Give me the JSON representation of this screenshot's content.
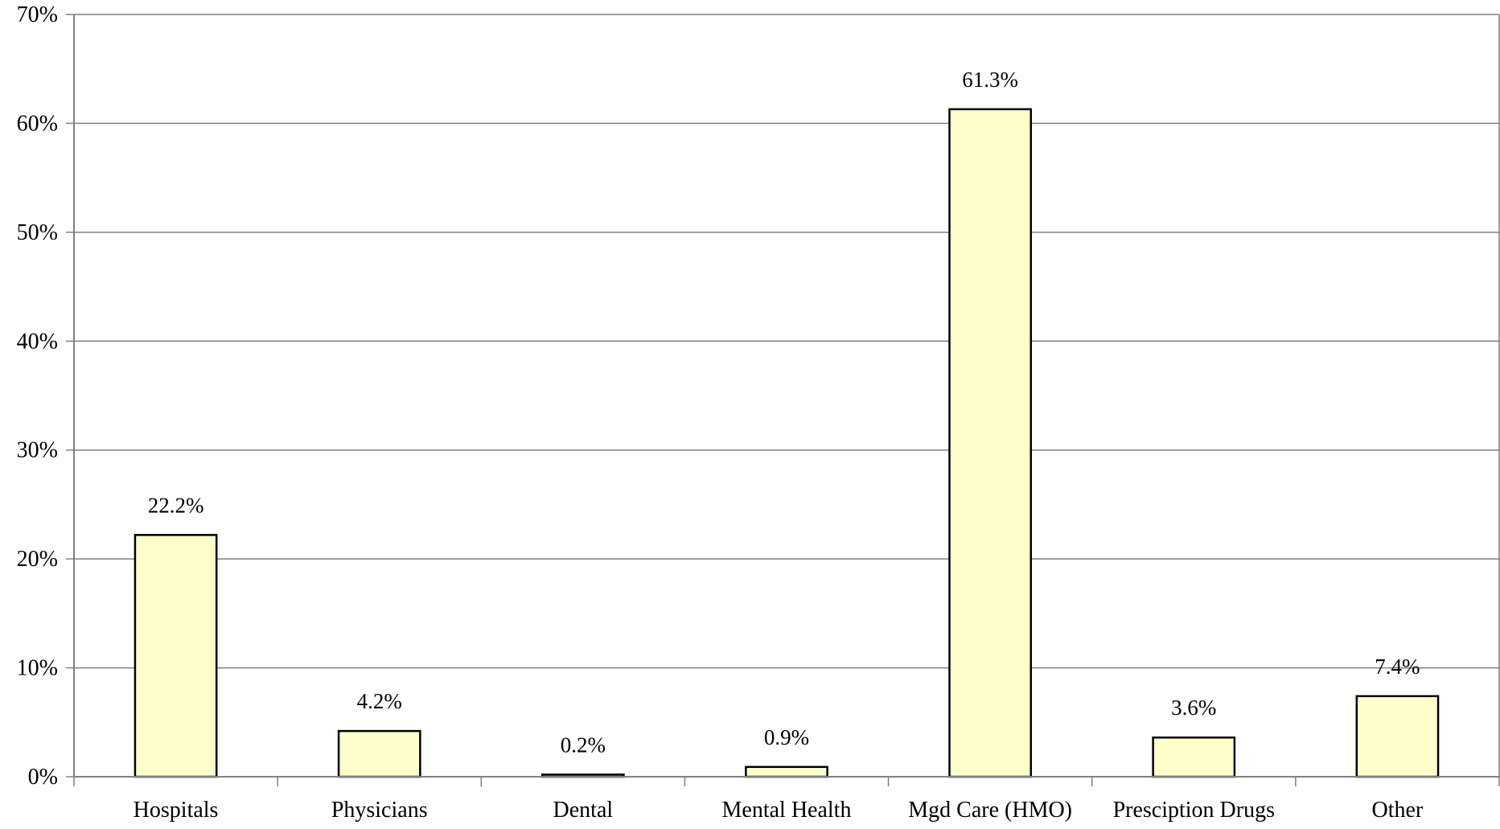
{
  "chart_data": {
    "type": "bar",
    "categories": [
      "Hospitals",
      "Physicians",
      "Dental",
      "Mental Health",
      "Mgd Care (HMO)",
      "Presciption Drugs",
      "Other"
    ],
    "values": [
      22.2,
      4.2,
      0.2,
      0.9,
      61.3,
      3.6,
      7.4
    ],
    "data_labels": [
      "22.2%",
      "4.2%",
      "0.2%",
      "0.9%",
      "61.3%",
      "3.6%",
      "7.4%"
    ],
    "ylim": [
      0,
      70
    ],
    "yticks": [
      0,
      10,
      20,
      30,
      40,
      50,
      60,
      70
    ],
    "ytick_labels": [
      "0%",
      "10%",
      "20%",
      "30%",
      "40%",
      "50%",
      "60%",
      "70%"
    ],
    "grid": true,
    "colors": {
      "bar_fill": "#FFFFCC",
      "bar_stroke": "#000000",
      "grid": "#808080",
      "axis": "#808080"
    }
  }
}
